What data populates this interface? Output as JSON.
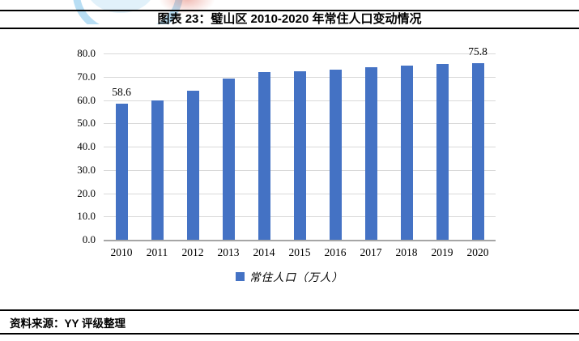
{
  "header": {
    "title": "图表 23：璧山区 2010-2020 年常住人口变动情况"
  },
  "footer": {
    "source": "资料来源：YY 评级整理"
  },
  "watermark": {
    "name": "partial-circular-logo"
  },
  "chart_data": {
    "type": "bar",
    "title": "图表 23：璧山区 2010-2020 年常住人口变动情况",
    "categories": [
      "2010",
      "2011",
      "2012",
      "2013",
      "2014",
      "2015",
      "2016",
      "2017",
      "2018",
      "2019",
      "2020"
    ],
    "series": [
      {
        "name": "常住人口（万人）",
        "values": [
          58.6,
          59.7,
          64.0,
          69.1,
          72.0,
          72.5,
          73.0,
          74.0,
          74.8,
          75.5,
          75.8
        ]
      }
    ],
    "data_labels": [
      {
        "index": 0,
        "text": "58.6"
      },
      {
        "index": 10,
        "text": "75.8"
      }
    ],
    "xlabel": "",
    "ylabel": "",
    "ylim": [
      0,
      80
    ],
    "ytick_step": 10,
    "ytick_labels": [
      "0.0",
      "10.0",
      "20.0",
      "30.0",
      "40.0",
      "50.0",
      "60.0",
      "70.0",
      "80.0"
    ],
    "grid": true,
    "legend": {
      "label": "常住人口（万人）",
      "position": "bottom"
    },
    "colors": {
      "bar": "#4472C4",
      "gridline": "#D9D9D9",
      "axis": "#A6A6A6",
      "text": "#000000"
    }
  }
}
